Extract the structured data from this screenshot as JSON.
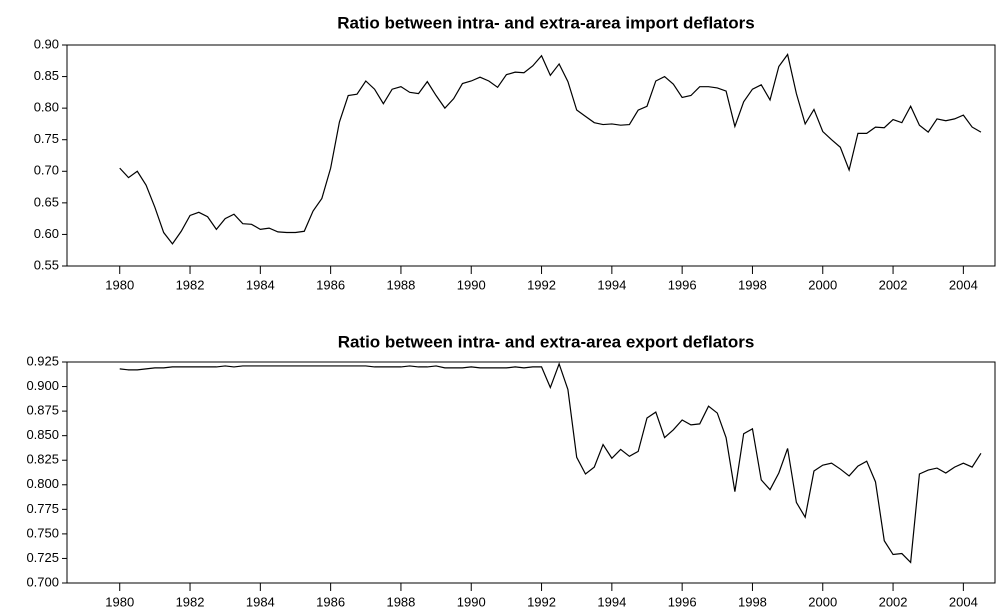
{
  "chart_data": [
    {
      "type": "line",
      "title": "Ratio between intra- and extra-area import deflators",
      "x": [
        1980,
        1980.25,
        1980.5,
        1980.75,
        1981,
        1981.25,
        1981.5,
        1981.75,
        1982,
        1982.25,
        1982.5,
        1982.75,
        1983,
        1983.25,
        1983.5,
        1983.75,
        1984,
        1984.25,
        1984.5,
        1984.75,
        1985,
        1985.25,
        1985.5,
        1985.75,
        1986,
        1986.25,
        1986.5,
        1986.75,
        1987,
        1987.25,
        1987.5,
        1987.75,
        1988,
        1988.25,
        1988.5,
        1988.75,
        1989,
        1989.25,
        1989.5,
        1989.75,
        1990,
        1990.25,
        1990.5,
        1990.75,
        1991,
        1991.25,
        1991.5,
        1991.75,
        1992,
        1992.25,
        1992.5,
        1992.75,
        1993,
        1993.25,
        1993.5,
        1993.75,
        1994,
        1994.25,
        1994.5,
        1994.75,
        1995,
        1995.25,
        1995.5,
        1995.75,
        1996,
        1996.25,
        1996.5,
        1996.75,
        1997,
        1997.25,
        1997.5,
        1997.75,
        1998,
        1998.25,
        1998.5,
        1998.75,
        1999,
        1999.25,
        1999.5,
        1999.75,
        2000,
        2000.25,
        2000.5,
        2000.75,
        2001,
        2001.25,
        2001.5,
        2001.75,
        2002,
        2002.25,
        2002.5,
        2002.75,
        2003,
        2003.25,
        2003.5,
        2003.75,
        2004,
        2004.25,
        2004.5
      ],
      "series": [
        {
          "color": "#000000",
          "values": [
            0.705,
            0.69,
            0.7,
            0.678,
            0.643,
            0.603,
            0.585,
            0.605,
            0.63,
            0.635,
            0.628,
            0.608,
            0.625,
            0.632,
            0.617,
            0.616,
            0.608,
            0.61,
            0.604,
            0.603,
            0.603,
            0.605,
            0.637,
            0.657,
            0.705,
            0.778,
            0.82,
            0.822,
            0.843,
            0.83,
            0.807,
            0.83,
            0.834,
            0.825,
            0.823,
            0.842,
            0.82,
            0.8,
            0.815,
            0.839,
            0.843,
            0.849,
            0.843,
            0.833,
            0.853,
            0.857,
            0.856,
            0.867,
            0.883,
            0.852,
            0.87,
            0.842,
            0.797,
            0.787,
            0.777,
            0.774,
            0.775,
            0.773,
            0.774,
            0.797,
            0.803,
            0.843,
            0.85,
            0.838,
            0.817,
            0.82,
            0.834,
            0.834,
            0.832,
            0.827,
            0.771,
            0.81,
            0.83,
            0.837,
            0.813,
            0.866,
            0.885,
            0.823,
            0.775,
            0.798,
            0.763,
            0.75,
            0.738,
            0.702,
            0.76,
            0.76,
            0.77,
            0.769,
            0.782,
            0.777,
            0.803,
            0.773,
            0.762,
            0.783,
            0.78,
            0.783,
            0.789,
            0.77,
            0.762
          ]
        }
      ],
      "xlim": [
        1978.5,
        2004.9
      ],
      "xticks": [
        1980,
        1982,
        1984,
        1986,
        1988,
        1990,
        1992,
        1994,
        1996,
        1998,
        2000,
        2002,
        2004
      ],
      "ylim": [
        0.55,
        0.9
      ],
      "yticks": [
        0.55,
        {
          "value": 0.6,
          "label": "0.60"
        },
        0.65,
        {
          "value": 0.7,
          "label": "0.70"
        },
        0.75,
        {
          "value": 0.8,
          "label": "0.80"
        },
        0.85,
        {
          "value": 0.9,
          "label": "0.90"
        }
      ]
    },
    {
      "type": "line",
      "title": "Ratio between intra- and extra-area export deflators",
      "x": [
        1980,
        1980.25,
        1980.5,
        1980.75,
        1981,
        1981.25,
        1981.5,
        1981.75,
        1982,
        1982.25,
        1982.5,
        1982.75,
        1983,
        1983.25,
        1983.5,
        1983.75,
        1984,
        1984.25,
        1984.5,
        1984.75,
        1985,
        1985.25,
        1985.5,
        1985.75,
        1986,
        1986.25,
        1986.5,
        1986.75,
        1987,
        1987.25,
        1987.5,
        1987.75,
        1988,
        1988.25,
        1988.5,
        1988.75,
        1989,
        1989.25,
        1989.5,
        1989.75,
        1990,
        1990.25,
        1990.5,
        1990.75,
        1991,
        1991.25,
        1991.5,
        1991.75,
        1992,
        1992.25,
        1992.5,
        1992.75,
        1993,
        1993.25,
        1993.5,
        1993.75,
        1994,
        1994.25,
        1994.5,
        1994.75,
        1995,
        1995.25,
        1995.5,
        1995.75,
        1996,
        1996.25,
        1996.5,
        1996.75,
        1997,
        1997.25,
        1997.5,
        1997.75,
        1998,
        1998.25,
        1998.5,
        1998.75,
        1999,
        1999.25,
        1999.5,
        1999.75,
        2000,
        2000.25,
        2000.5,
        2000.75,
        2001,
        2001.25,
        2001.5,
        2001.75,
        2002,
        2002.25,
        2002.5,
        2002.75,
        2003,
        2003.25,
        2003.5,
        2003.75,
        2004,
        2004.25,
        2004.5
      ],
      "series": [
        {
          "color": "#000000",
          "values": [
            0.918,
            0.917,
            0.917,
            0.918,
            0.919,
            0.919,
            0.92,
            0.92,
            0.92,
            0.92,
            0.92,
            0.92,
            0.921,
            0.92,
            0.921,
            0.921,
            0.921,
            0.921,
            0.921,
            0.921,
            0.921,
            0.921,
            0.921,
            0.921,
            0.921,
            0.921,
            0.921,
            0.921,
            0.921,
            0.92,
            0.92,
            0.92,
            0.92,
            0.921,
            0.92,
            0.92,
            0.921,
            0.919,
            0.919,
            0.919,
            0.92,
            0.919,
            0.919,
            0.919,
            0.919,
            0.92,
            0.919,
            0.92,
            0.92,
            0.899,
            0.923,
            0.897,
            0.828,
            0.811,
            0.818,
            0.841,
            0.827,
            0.836,
            0.829,
            0.834,
            0.868,
            0.874,
            0.848,
            0.856,
            0.866,
            0.861,
            0.862,
            0.88,
            0.873,
            0.848,
            0.793,
            0.852,
            0.857,
            0.805,
            0.795,
            0.812,
            0.837,
            0.782,
            0.767,
            0.814,
            0.82,
            0.822,
            0.816,
            0.809,
            0.819,
            0.824,
            0.803,
            0.743,
            0.729,
            0.73,
            0.721,
            0.811,
            0.815,
            0.817,
            0.812,
            0.818,
            0.822,
            0.818,
            0.832
          ]
        }
      ],
      "xlim": [
        1978.5,
        2004.9
      ],
      "xticks": [
        1980,
        1982,
        1984,
        1986,
        1988,
        1990,
        1992,
        1994,
        1996,
        1998,
        2000,
        2002,
        2004
      ],
      "ylim": [
        0.7,
        0.925
      ],
      "yticks": [
        {
          "value": 0.7,
          "label": "0.700"
        },
        0.725,
        {
          "value": 0.75,
          "label": "0.750"
        },
        0.775,
        {
          "value": 0.8,
          "label": "0.800"
        },
        0.825,
        {
          "value": 0.85,
          "label": "0.850"
        },
        0.875,
        {
          "value": 0.9,
          "label": "0.900"
        },
        0.925
      ]
    }
  ]
}
